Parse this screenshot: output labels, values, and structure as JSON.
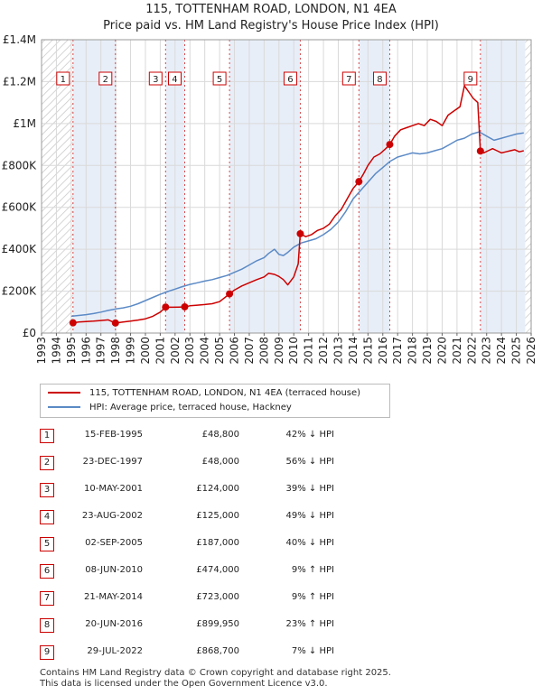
{
  "title": {
    "line1": "115, TOTTENHAM ROAD, LONDON, N1 4EA",
    "line2": "Price paid vs. HM Land Registry's House Price Index (HPI)"
  },
  "colors": {
    "price_line": "#cc0000",
    "hpi_line": "#5b8ac6",
    "shade": "#e8eef8",
    "grid": "#d9d9d9",
    "marker_border": "#cc0000"
  },
  "chart_data": {
    "type": "line",
    "title": "Price paid vs. HM Land Registry's House Price Index (HPI)",
    "xlabel": "",
    "ylabel": "",
    "xlim": [
      1993,
      2026
    ],
    "ylim": [
      0,
      1400000
    ],
    "x_ticks": [
      1993,
      1994,
      1995,
      1996,
      1997,
      1998,
      1999,
      2000,
      2001,
      2002,
      2003,
      2004,
      2005,
      2006,
      2007,
      2008,
      2009,
      2010,
      2011,
      2012,
      2013,
      2014,
      2015,
      2016,
      2017,
      2018,
      2019,
      2020,
      2021,
      2022,
      2023,
      2024,
      2025,
      2026
    ],
    "y_ticks": [
      {
        "value": 0,
        "label": "£0"
      },
      {
        "value": 200000,
        "label": "£200K"
      },
      {
        "value": 400000,
        "label": "£400K"
      },
      {
        "value": 600000,
        "label": "£600K"
      },
      {
        "value": 800000,
        "label": "£800K"
      },
      {
        "value": 1000000,
        "label": "£1M"
      },
      {
        "value": 1200000,
        "label": "£1.2M"
      },
      {
        "value": 1400000,
        "label": "£1.4M"
      }
    ],
    "hatched_ranges": [
      [
        1993,
        1995.12
      ],
      [
        2025.6,
        2026
      ]
    ],
    "shaded_ranges": [
      [
        1995.12,
        1997.98
      ],
      [
        2001.36,
        2002.65
      ],
      [
        2005.67,
        2010.44
      ],
      [
        2014.39,
        2016.47
      ],
      [
        2022.58,
        2025.6
      ]
    ],
    "series": [
      {
        "name": "115, TOTTENHAM ROAD, LONDON, N1 4EA (terraced house)",
        "color": "#cc0000",
        "x": [
          1995.12,
          1995.5,
          1996,
          1996.5,
          1997,
          1997.5,
          1997.98,
          1998.5,
          1999,
          1999.5,
          2000,
          2000.5,
          2001,
          2001.36,
          2001.8,
          2002.3,
          2002.65,
          2003,
          2003.5,
          2004,
          2004.5,
          2005,
          2005.67,
          2006,
          2006.5,
          2007,
          2007.5,
          2008,
          2008.3,
          2008.7,
          2009,
          2009.3,
          2009.6,
          2010,
          2010.3,
          2010.44,
          2010.8,
          2011.2,
          2011.6,
          2012,
          2012.4,
          2012.8,
          2013.2,
          2013.6,
          2014,
          2014.39,
          2014.7,
          2015,
          2015.4,
          2015.8,
          2016.2,
          2016.47,
          2016.8,
          2017.2,
          2017.6,
          2018,
          2018.4,
          2018.8,
          2019.2,
          2019.6,
          2020,
          2020.4,
          2020.8,
          2021.2,
          2021.5,
          2021.8,
          2022.1,
          2022.4,
          2022.58,
          2022.8,
          2023.1,
          2023.4,
          2023.7,
          2024,
          2024.3,
          2024.6,
          2024.9,
          2025.2,
          2025.5
        ],
        "y": [
          48800,
          53000,
          55000,
          57000,
          60000,
          63000,
          48000,
          53000,
          57000,
          62000,
          68000,
          80000,
          100000,
          124000,
          123000,
          124000,
          125000,
          130000,
          133000,
          136000,
          140000,
          150000,
          187000,
          205000,
          225000,
          240000,
          255000,
          268000,
          285000,
          280000,
          270000,
          255000,
          230000,
          268000,
          330000,
          474000,
          460000,
          470000,
          490000,
          500000,
          520000,
          560000,
          590000,
          640000,
          690000,
          723000,
          760000,
          800000,
          840000,
          855000,
          880000,
          899950,
          940000,
          970000,
          980000,
          990000,
          1000000,
          990000,
          1020000,
          1010000,
          990000,
          1040000,
          1060000,
          1080000,
          1180000,
          1150000,
          1120000,
          1100000,
          868700,
          860000,
          870000,
          880000,
          870000,
          860000,
          865000,
          870000,
          875000,
          865000,
          870000
        ]
      },
      {
        "name": "HPI: Average price, terraced house, Hackney",
        "color": "#5b8ac6",
        "x": [
          1995,
          1995.5,
          1996,
          1996.5,
          1997,
          1997.5,
          1998,
          1998.5,
          1999,
          1999.5,
          2000,
          2000.5,
          2001,
          2001.5,
          2002,
          2002.5,
          2003,
          2003.5,
          2004,
          2004.5,
          2005,
          2005.5,
          2006,
          2006.5,
          2007,
          2007.5,
          2008,
          2008.3,
          2008.7,
          2009,
          2009.3,
          2009.6,
          2010,
          2010.5,
          2011,
          2011.5,
          2012,
          2012.5,
          2013,
          2013.5,
          2014,
          2014.5,
          2015,
          2015.5,
          2016,
          2016.5,
          2017,
          2017.5,
          2018,
          2018.5,
          2019,
          2019.5,
          2020,
          2020.5,
          2021,
          2021.5,
          2022,
          2022.5,
          2023,
          2023.5,
          2024,
          2024.5,
          2025,
          2025.5
        ],
        "y": [
          80000,
          84000,
          88000,
          93000,
          100000,
          108000,
          115000,
          120000,
          128000,
          140000,
          155000,
          170000,
          185000,
          198000,
          210000,
          222000,
          232000,
          240000,
          248000,
          255000,
          265000,
          275000,
          290000,
          305000,
          325000,
          345000,
          360000,
          380000,
          400000,
          375000,
          370000,
          385000,
          410000,
          430000,
          440000,
          450000,
          470000,
          495000,
          530000,
          580000,
          640000,
          680000,
          720000,
          760000,
          790000,
          820000,
          840000,
          850000,
          860000,
          855000,
          860000,
          870000,
          880000,
          900000,
          920000,
          930000,
          950000,
          960000,
          940000,
          920000,
          930000,
          940000,
          950000,
          955000
        ]
      }
    ],
    "sale_markers": [
      {
        "label": "1",
        "x": 1995.12,
        "y": 48800
      },
      {
        "label": "2",
        "x": 1997.98,
        "y": 48000
      },
      {
        "label": "3",
        "x": 2001.36,
        "y": 124000
      },
      {
        "label": "4",
        "x": 2002.65,
        "y": 125000
      },
      {
        "label": "5",
        "x": 2005.67,
        "y": 187000
      },
      {
        "label": "6",
        "x": 2010.44,
        "y": 474000
      },
      {
        "label": "7",
        "x": 2014.39,
        "y": 723000
      },
      {
        "label": "8",
        "x": 2016.47,
        "y": 899950
      },
      {
        "label": "9",
        "x": 2022.58,
        "y": 868700
      }
    ]
  },
  "legend": {
    "price_label": "115, TOTTENHAM ROAD, LONDON, N1 4EA (terraced house)",
    "hpi_label": "HPI: Average price, terraced house, Hackney"
  },
  "sales": [
    {
      "num": "1",
      "date": "15-FEB-1995",
      "price": "£48,800",
      "hpi": "42% ↓ HPI"
    },
    {
      "num": "2",
      "date": "23-DEC-1997",
      "price": "£48,000",
      "hpi": "56% ↓ HPI"
    },
    {
      "num": "3",
      "date": "10-MAY-2001",
      "price": "£124,000",
      "hpi": "39% ↓ HPI"
    },
    {
      "num": "4",
      "date": "23-AUG-2002",
      "price": "£125,000",
      "hpi": "49% ↓ HPI"
    },
    {
      "num": "5",
      "date": "02-SEP-2005",
      "price": "£187,000",
      "hpi": "40% ↓ HPI"
    },
    {
      "num": "6",
      "date": "08-JUN-2010",
      "price": "£474,000",
      "hpi": "9% ↑ HPI"
    },
    {
      "num": "7",
      "date": "21-MAY-2014",
      "price": "£723,000",
      "hpi": "9% ↑ HPI"
    },
    {
      "num": "8",
      "date": "20-JUN-2016",
      "price": "£899,950",
      "hpi": "23% ↑ HPI"
    },
    {
      "num": "9",
      "date": "29-JUL-2022",
      "price": "£868,700",
      "hpi": "7% ↓ HPI"
    }
  ],
  "footer": {
    "line1": "Contains HM Land Registry data © Crown copyright and database right 2025.",
    "line2": "This data is licensed under the Open Government Licence v3.0."
  }
}
